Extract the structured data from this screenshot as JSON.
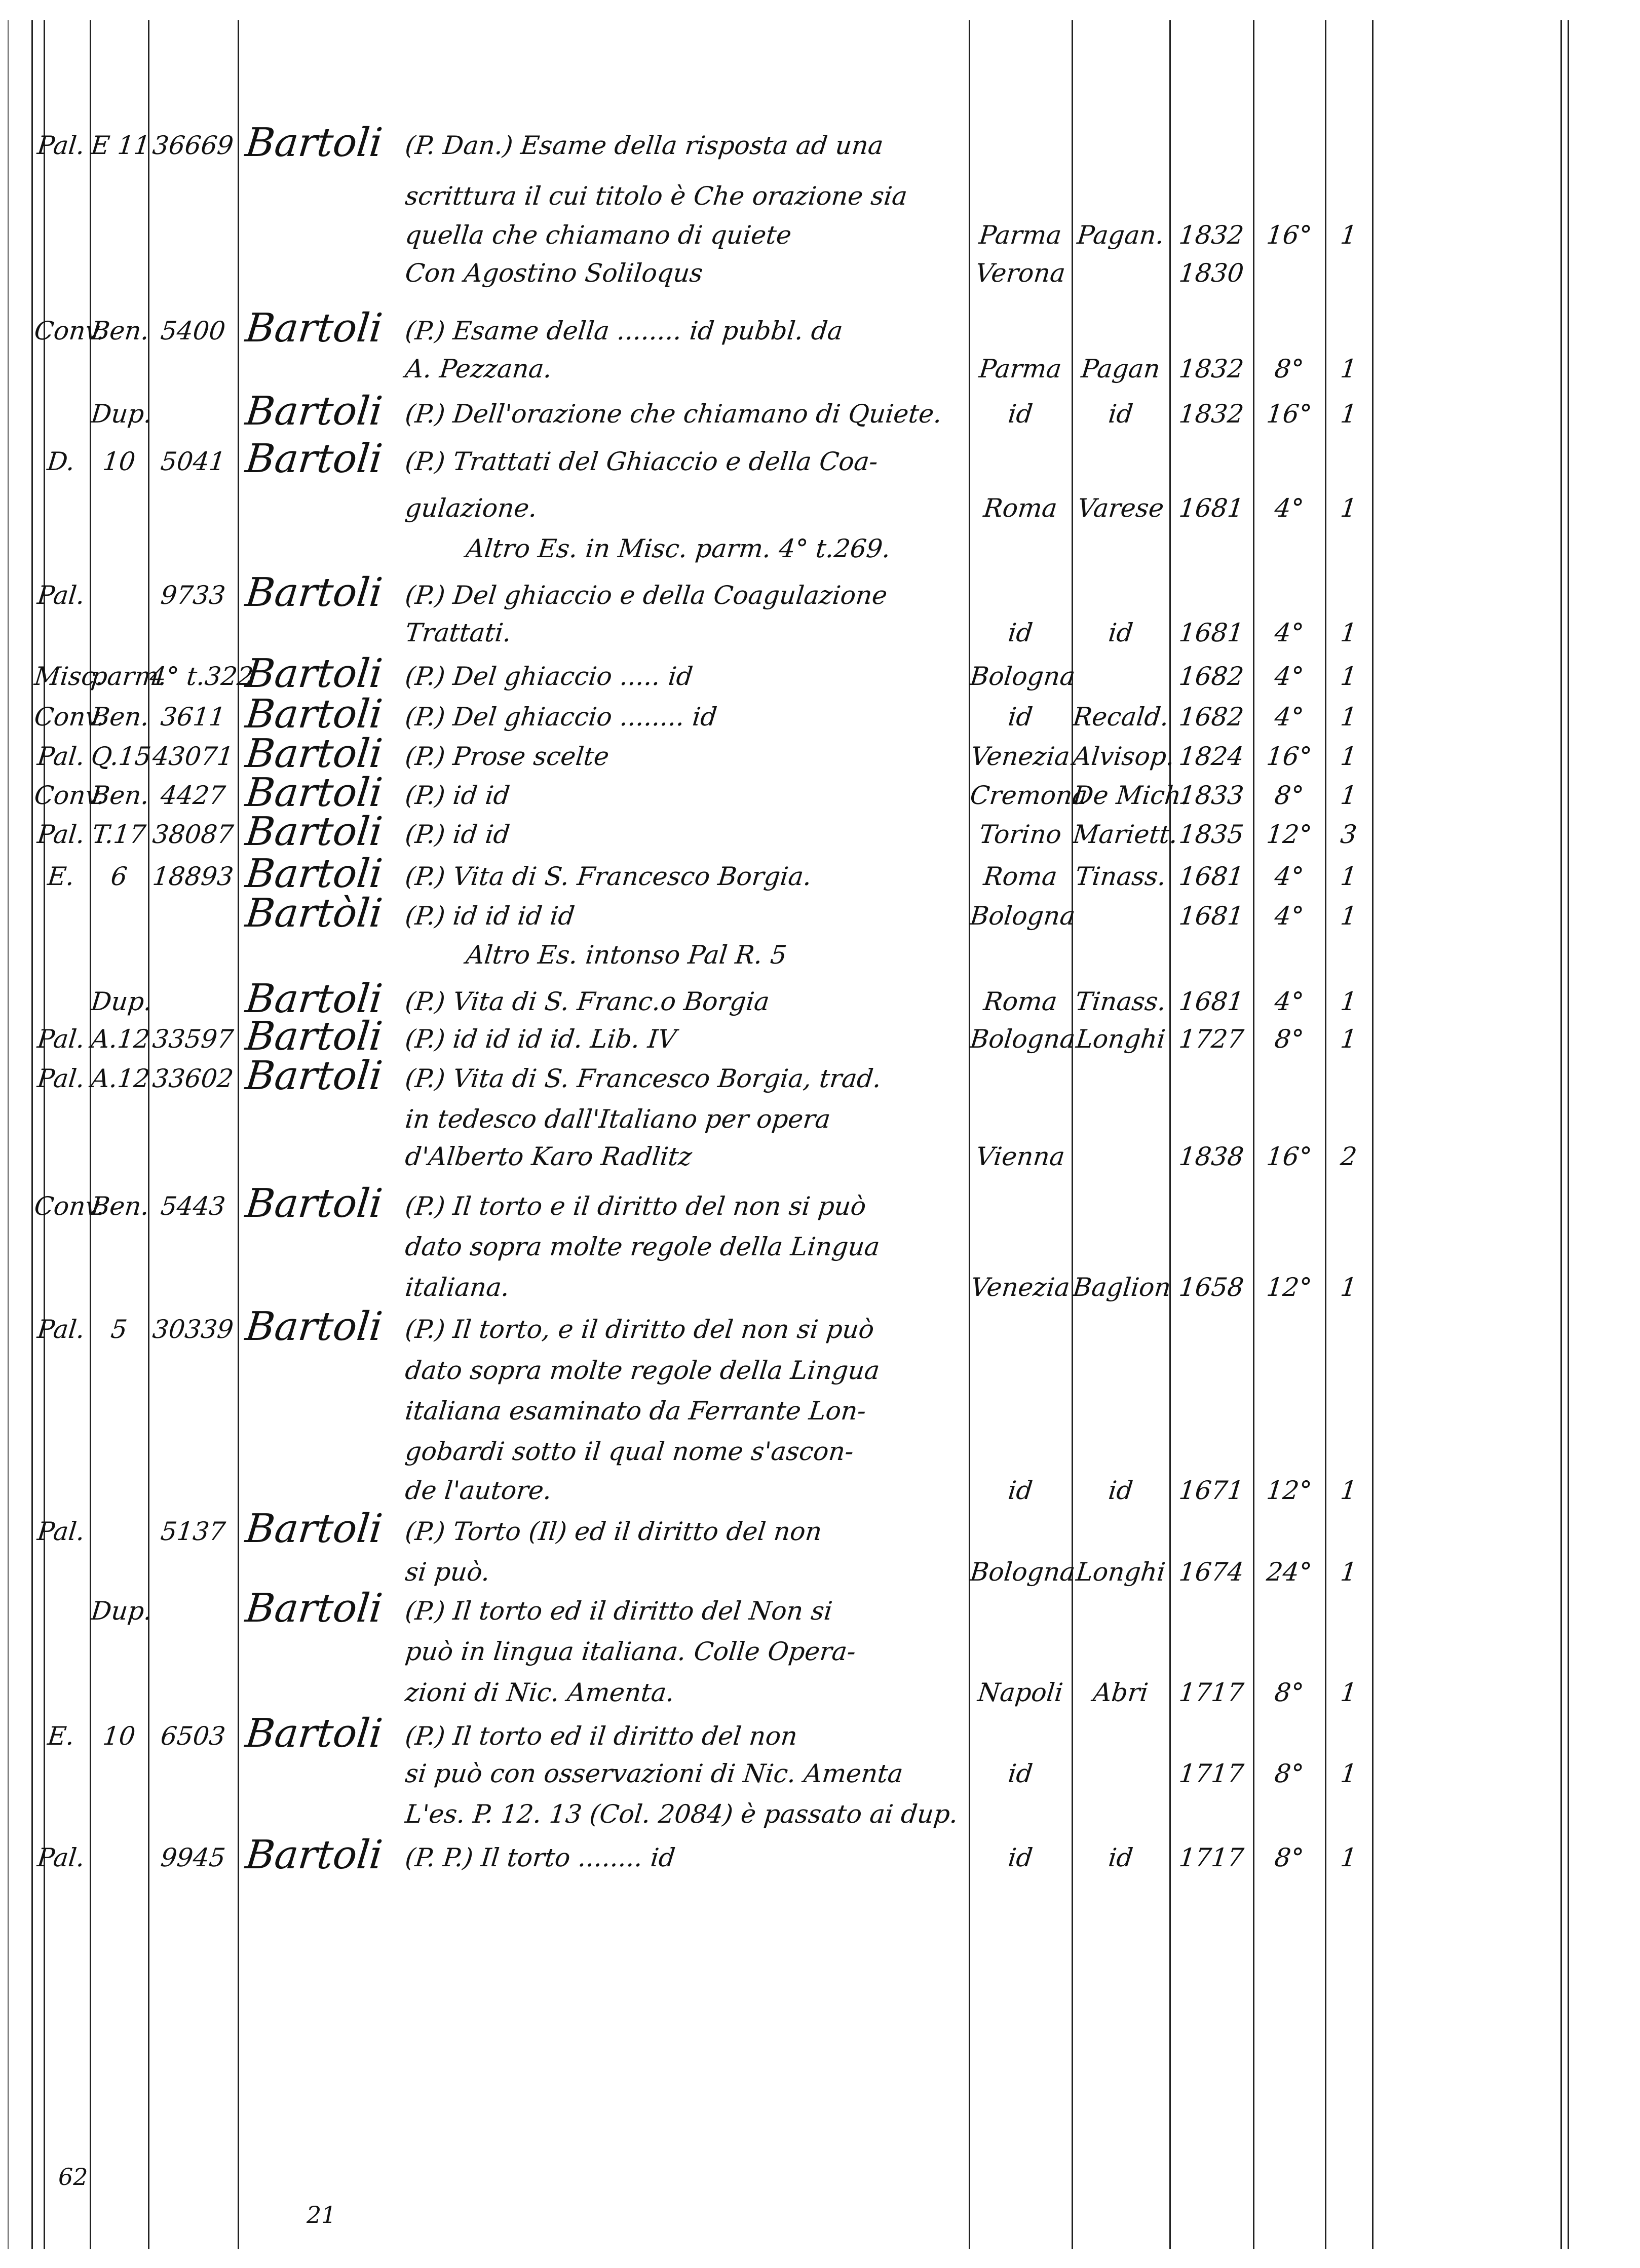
{
  "document": {
    "page_number": "62",
    "footer_mark": "21"
  },
  "entries": [
    {
      "fonds": "Pal.",
      "shelf": "E 11",
      "number": "36669",
      "author": "Bartoli",
      "lines": [
        {
          "text": "(P. Dan.) Esame della risposta ad una"
        },
        {
          "text": "scrittura il cui titolo è Che orazione sia"
        },
        {
          "text": "quella che chiamano di quiete",
          "place": "Parma",
          "printer": "Pagan.",
          "year": "1832",
          "format": "16°",
          "copies": "1"
        },
        {
          "text": "Con Agostino Soliloqus",
          "place": "Verona",
          "year": "1830"
        }
      ]
    },
    {
      "fonds": "Conv.",
      "shelf": "Ben.",
      "number": "5400",
      "author": "Bartoli",
      "lines": [
        {
          "text": "(P.) Esame della ........ id pubbl. da"
        },
        {
          "text": "A. Pezzana.",
          "place": "Parma",
          "printer": "Pagan",
          "year": "1832",
          "format": "8°",
          "copies": "1"
        }
      ]
    },
    {
      "fonds": "",
      "shelf": "Dup.",
      "number": "",
      "author": "Bartoli",
      "lines": [
        {
          "text": "(P.) Dell'orazione che chiamano di Quiete.",
          "place": "id",
          "printer": "id",
          "year": "1832",
          "format": "16°",
          "copies": "1"
        }
      ]
    },
    {
      "fonds": "D.",
      "shelf": "10",
      "number": "5041",
      "author": "Bartoli",
      "lines": [
        {
          "text": "(P.) Trattati del Ghiaccio e della Coa-"
        },
        {
          "text": "gulazione.",
          "place": "Roma",
          "printer": "Varese",
          "year": "1681",
          "format": "4°",
          "copies": "1"
        },
        {
          "text": "     Altro Es. in Misc. parm. 4° t.269."
        }
      ]
    },
    {
      "fonds": "Pal.",
      "shelf": "",
      "number": "9733",
      "author": "Bartoli",
      "lines": [
        {
          "text": "(P.) Del ghiaccio e della Coagulazione"
        },
        {
          "text": "Trattati.",
          "place": "id",
          "printer": "id",
          "year": "1681",
          "format": "4°",
          "copies": "1"
        }
      ]
    },
    {
      "fonds": "Misc.",
      "shelf": "parm.",
      "number": "4° t.322",
      "author": "Bartoli",
      "lines": [
        {
          "text": "(P.) Del ghiaccio ..... id",
          "place": "Bologna",
          "year": "1682",
          "format": "4°",
          "copies": "1"
        }
      ]
    },
    {
      "fonds": "Conv.",
      "shelf": "Ben.",
      "number": "3611",
      "author": "Bartoli",
      "lines": [
        {
          "text": "(P.) Del ghiaccio ........ id",
          "place": "id",
          "printer": "Recald.",
          "year": "1682",
          "format": "4°",
          "copies": "1"
        }
      ]
    },
    {
      "fonds": "Pal.",
      "shelf": "Q.15",
      "number": "43071",
      "author": "Bartoli",
      "lines": [
        {
          "text": "(P.) Prose scelte",
          "place": "Venezia",
          "printer": "Alvisop.",
          "year": "1824",
          "format": "16°",
          "copies": "1"
        }
      ]
    },
    {
      "fonds": "Conv.",
      "shelf": "Ben.",
      "number": "4427",
      "author": "Bartoli",
      "lines": [
        {
          "text": "(P.)  id     id",
          "place": "Cremona",
          "printer": "De Mich.",
          "year": "1833",
          "format": "8°",
          "copies": "1"
        }
      ]
    },
    {
      "fonds": "Pal.",
      "shelf": "T.17",
      "number": "38087",
      "author": "Bartoli",
      "lines": [
        {
          "text": "(P.)  id     id",
          "place": "Torino",
          "printer": "Mariett.",
          "year": "1835",
          "format": "12°",
          "copies": "3"
        }
      ]
    },
    {
      "fonds": "E.",
      "shelf": "6",
      "number": "18893",
      "author": "Bartoli",
      "lines": [
        {
          "text": "(P.) Vita di S. Francesco Borgia.",
          "place": "Roma",
          "printer": "Tinass.",
          "year": "1681",
          "format": "4°",
          "copies": "1"
        }
      ]
    },
    {
      "fonds": "",
      "shelf": "",
      "number": "",
      "author": "Bartòli",
      "lines": [
        {
          "text": "(P.)  id   id     id        id",
          "place": "Bologna",
          "year": "1681",
          "format": "4°",
          "copies": "1"
        },
        {
          "text": "     Altro Es. intonso Pal R. 5"
        }
      ]
    },
    {
      "fonds": "",
      "shelf": "Dup.",
      "number": "",
      "author": "Bartoli",
      "lines": [
        {
          "text": "(P.) Vita di S. Franc.o Borgia",
          "place": "Roma",
          "printer": "Tinass.",
          "year": "1681",
          "format": "4°",
          "copies": "1"
        }
      ]
    },
    {
      "fonds": "Pal.",
      "shelf": "A.12",
      "number": "33597",
      "author": "Bartoli",
      "lines": [
        {
          "text": "(P.)  id   id     id     id. Lib. IV",
          "place": "Bologna",
          "printer": "Longhi",
          "year": "1727",
          "format": "8°",
          "copies": "1"
        }
      ]
    },
    {
      "fonds": "Pal.",
      "shelf": "A.12",
      "number": "33602",
      "author": "Bartoli",
      "lines": [
        {
          "text": "(P.) Vita di S. Francesco Borgia, trad."
        },
        {
          "text": "in tedesco dall'Italiano per opera"
        },
        {
          "text": "d'Alberto Karo Radlitz",
          "place": "Vienna",
          "year": "1838",
          "format": "16°",
          "copies": "2"
        }
      ]
    },
    {
      "fonds": "Conv.",
      "shelf": "Ben.",
      "number": "5443",
      "author": "Bartoli",
      "lines": [
        {
          "text": "(P.) Il torto e il diritto del non si può"
        },
        {
          "text": "dato sopra molte regole della Lingua"
        },
        {
          "text": "italiana.",
          "place": "Venezia",
          "printer": "Baglion",
          "year": "1658",
          "format": "12°",
          "copies": "1"
        }
      ]
    },
    {
      "fonds": "Pal.",
      "shelf": "5",
      "number": "30339",
      "author": "Bartoli",
      "lines": [
        {
          "text": "(P.) Il torto, e il diritto del non si può"
        },
        {
          "text": "dato sopra molte regole della Lingua"
        },
        {
          "text": "italiana esaminato da Ferrante Lon-"
        },
        {
          "text": "gobardi sotto il qual nome s'ascon-"
        },
        {
          "text": "de l'autore.",
          "place": "id",
          "printer": "id",
          "year": "1671",
          "format": "12°",
          "copies": "1"
        }
      ]
    },
    {
      "fonds": "Pal.",
      "shelf": "",
      "number": "5137",
      "author": "Bartoli",
      "lines": [
        {
          "text": "(P.) Torto (Il) ed il diritto del non"
        },
        {
          "text": "si può.",
          "place": "Bologna",
          "printer": "Longhi",
          "year": "1674",
          "format": "24°",
          "copies": "1"
        }
      ]
    },
    {
      "fonds": "",
      "shelf": "Dup.",
      "number": "",
      "author": "Bartoli",
      "lines": [
        {
          "text": "(P.) Il torto ed il diritto del Non si"
        },
        {
          "text": "può in lingua italiana. Colle Opera-"
        },
        {
          "text": "zioni di Nic. Amenta.",
          "place": "Napoli",
          "printer": "Abri",
          "year": "1717",
          "format": "8°",
          "copies": "1"
        }
      ]
    },
    {
      "fonds": "E.",
      "shelf": "10",
      "number": "6503",
      "author": "Bartoli",
      "lines": [
        {
          "text": "(P.) Il torto ed il diritto del non"
        },
        {
          "text": "si può con osservazioni di Nic. Amenta",
          "place": "id",
          "year": "1717",
          "format": "8°",
          "copies": "1"
        },
        {
          "text": "L'es. P. 12. 13 (Col. 2084) è passato ai dup."
        }
      ]
    },
    {
      "fonds": "Pal.",
      "shelf": "",
      "number": "9945",
      "author": "Bartoli",
      "lines": [
        {
          "text": "(P. P.) Il torto ........ id",
          "place": "id",
          "printer": "id",
          "year": "1717",
          "format": "8°",
          "copies": "1"
        }
      ]
    }
  ]
}
